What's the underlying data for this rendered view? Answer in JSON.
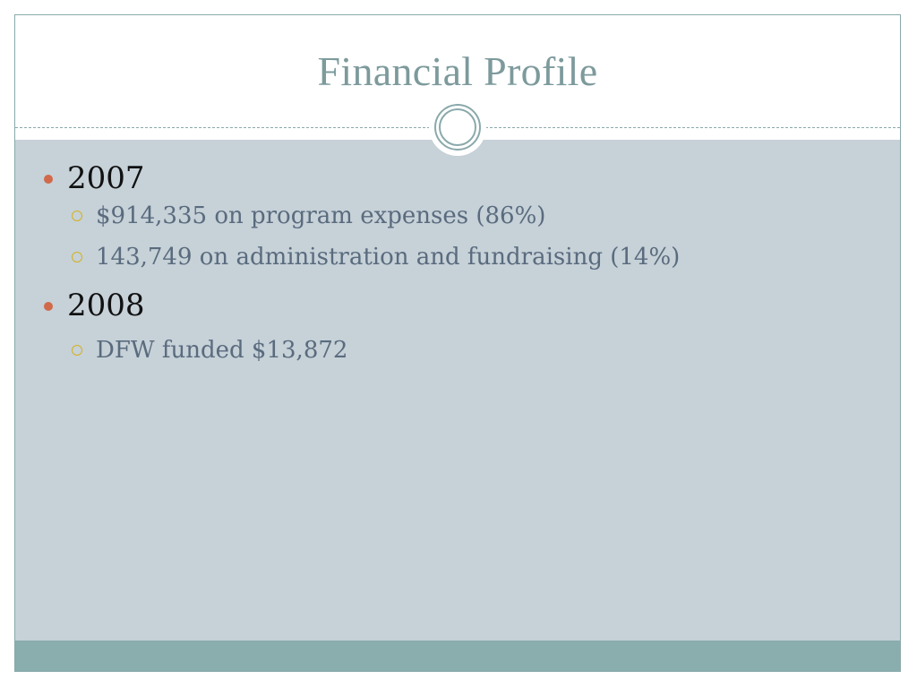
{
  "slide": {
    "title": "Financial Profile",
    "items": [
      {
        "label": "2007",
        "sub": [
          "$914,335 on program expenses (86%)",
          "143,749 on administration and fundraising (14%)"
        ]
      },
      {
        "label": "2008",
        "sub": [
          "DFW funded $13,872"
        ]
      }
    ]
  },
  "colors": {
    "title": "#7d9a9c",
    "body_background": "#c6d1d8",
    "bullet_level1": "#d06a4b",
    "bullet_level2": "#d4b21c",
    "sub_text": "#5a6b7e",
    "footer": "#8aadad",
    "border": "#8aa9ab"
  }
}
